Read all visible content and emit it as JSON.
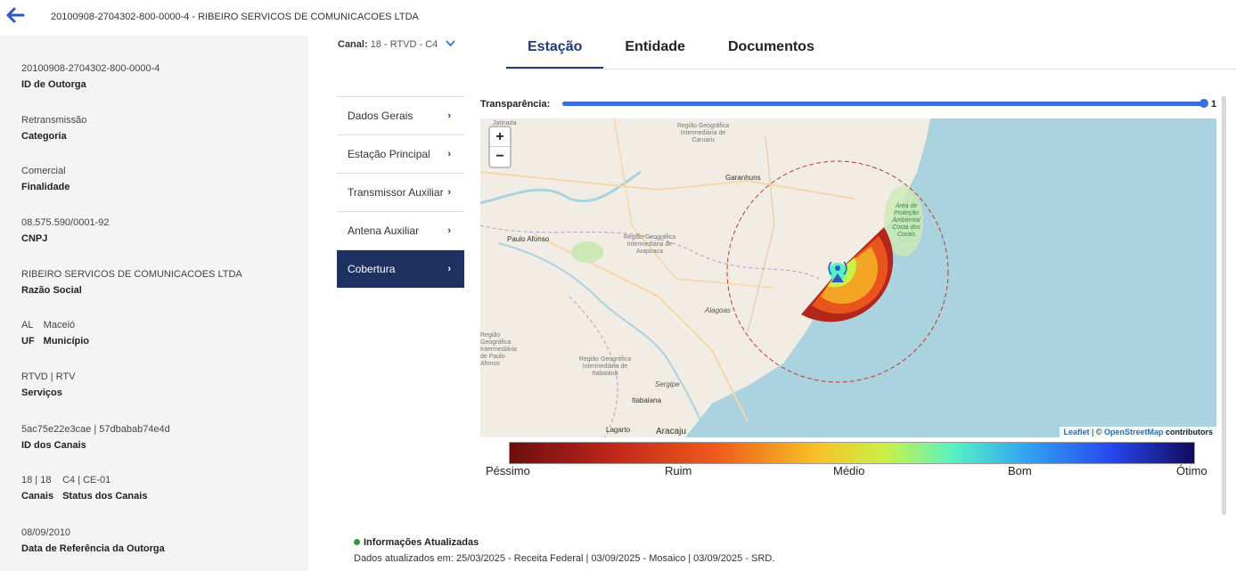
{
  "header": {
    "title": "20100908-2704302-800-0000-4 - RIBEIRO SERVICOS DE COMUNICACOES LTDA"
  },
  "fields": [
    {
      "value": "20100908-2704302-800-0000-4",
      "label": "ID de Outorga"
    },
    {
      "value": "Retransmissão",
      "label": "Categoria"
    },
    {
      "value": "Comercial",
      "label": "Finalidade"
    },
    {
      "value": "08.575.590/0001-92",
      "label": "CNPJ"
    },
    {
      "value": "RIBEIRO SERVICOS DE COMUNICACOES LTDA",
      "label": "Razão Social"
    },
    {
      "value": "RTVD | RTV",
      "label": "Serviços"
    },
    {
      "value": "5ac75e22e3cae | 57dbabab74e4d",
      "label": "ID dos Canais"
    },
    {
      "value": "08/09/2010",
      "label": "Data de Referência da Outorga"
    }
  ],
  "uf_municipio": {
    "uf_value": "AL",
    "uf_label": "UF",
    "mun_value": "Maceió",
    "mun_label": "Município"
  },
  "canais": {
    "canais_value": "18 | 18",
    "canais_label": "Canais",
    "status_value": "C4 | CE-01",
    "status_label": "Status dos Canais"
  },
  "canal_selector": {
    "label": "Canal:",
    "value": "18 - RTVD - C4"
  },
  "tabs": [
    "Estação",
    "Entidade",
    "Documentos"
  ],
  "subnav": [
    "Dados Gerais",
    "Estação Principal",
    "Transmissor Auxiliar",
    "Antena Auxiliar",
    "Cobertura"
  ],
  "transparency": {
    "label": "Transparência:",
    "value": "1",
    "level": 1.0
  },
  "map": {
    "zoom_in": "+",
    "zoom_out": "−",
    "attribution": {
      "leaflet": "Leaflet",
      "sep": " | © ",
      "osm": "OpenStreetMap",
      "contrib": " contributors"
    },
    "labels": {
      "caruaru": "Região Geográfica Intermediária de Caruaru",
      "arapiraca": "Região Geográfica Intermediária de Arapiraca",
      "paulo_afonso_reg": "Região Geográfica Intermediária de Paulo Afonso",
      "itabaiana_reg": "Região Geográfica Intermediária de Itabaiana",
      "protecao": "Área de Proteção Ambiental Costa dos Corais",
      "garanhuns": "Garanhuns",
      "paulo_afonso": "Paulo Afonso",
      "alagoas": "Alagoas",
      "sergipe": "Sergipe",
      "itabaiana": "Itabaiana",
      "lagarto": "Lagarto",
      "aracaju": "Aracaju",
      "jatinada": "Jatinada"
    }
  },
  "legend": [
    "Péssimo",
    "Ruim",
    "Médio",
    "Bom",
    "Ótimo"
  ],
  "info": {
    "title": "Informações Atualizadas",
    "text": "Dados atualizados em: 25/03/2025 - Receita Federal | 03/09/2025 - Mosaico | 03/09/2025 - SRD."
  },
  "colors": {
    "accent": "#1f3160",
    "link": "#3a6fd8",
    "status_ok": "#2e9b3a",
    "sea": "#aad3df"
  }
}
